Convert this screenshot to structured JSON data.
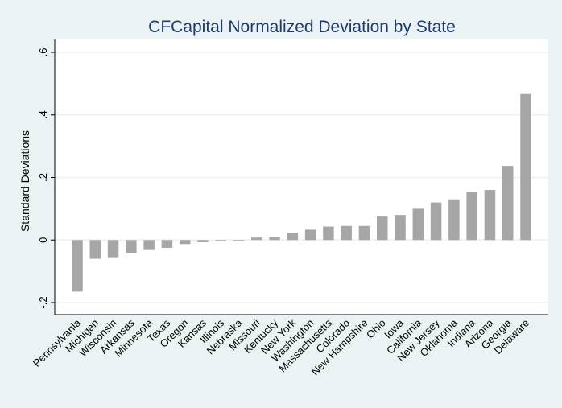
{
  "chart_data": {
    "type": "bar",
    "title": "CFCapital Normalized Deviation by State",
    "xlabel": "",
    "ylabel": "Standard Deviations",
    "ylim": [
      -0.2,
      0.6
    ],
    "yticks": [
      -0.2,
      0,
      0.2,
      0.4,
      0.6
    ],
    "ytick_labels": [
      "-.2",
      "0",
      ".2",
      ".4",
      ".6"
    ],
    "grid": true,
    "categories": [
      "Pennsylvania",
      "Michigan",
      "Wisconsin",
      "Arkansas",
      "Minnesota",
      "Texas",
      "Oregon",
      "Kansas",
      "Illinois",
      "Nebraska",
      "Missouri",
      "Kentucky",
      "New York",
      "Washington",
      "Massachusetts",
      "Colorado",
      "New Hampshire",
      "Ohio",
      "Iowa",
      "California",
      "New Jersey",
      "Oklahoma",
      "Indiana",
      "Arizona",
      "Georgia",
      "Delaware"
    ],
    "values": [
      -0.165,
      -0.06,
      -0.055,
      -0.042,
      -0.032,
      -0.025,
      -0.013,
      -0.007,
      -0.004,
      -0.002,
      0.008,
      0.009,
      0.023,
      0.033,
      0.043,
      0.045,
      0.045,
      0.075,
      0.08,
      0.1,
      0.12,
      0.13,
      0.153,
      0.16,
      0.237,
      0.467
    ],
    "colors": {
      "bar": "#a6a6a6",
      "plot_background": "#ffffff",
      "page_background": "#eaf2f3",
      "gridline": "#eaf2f3",
      "title": "#1e3a6e"
    }
  }
}
